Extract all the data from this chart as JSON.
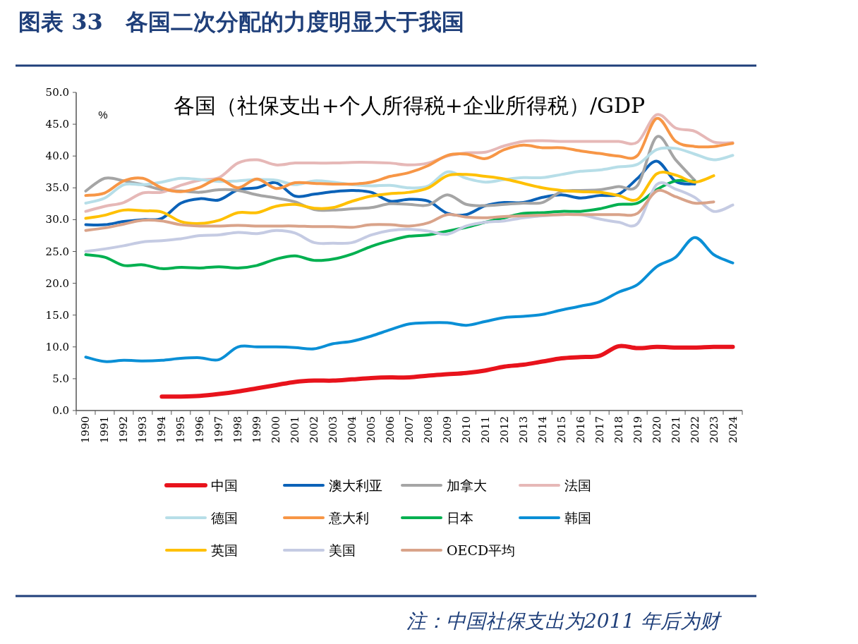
{
  "chart_data": {
    "type": "line",
    "title": "图表 33　各国二次分配的力度明显大于我国",
    "subtitle": "各国（社保支出+个人所得税+企业所得税）/GDP",
    "ylabel": "%",
    "categories": [
      "1990",
      "1991",
      "1992",
      "1993",
      "1994",
      "1995",
      "1996",
      "1997",
      "1998",
      "1999",
      "2000",
      "2001",
      "2002",
      "2003",
      "2004",
      "2005",
      "2006",
      "2007",
      "2008",
      "2009",
      "2010",
      "2011",
      "2012",
      "2013",
      "2014",
      "2015",
      "2016",
      "2017",
      "2018",
      "2019",
      "2020",
      "2021",
      "2022",
      "2023",
      "2024"
    ],
    "ylim": [
      0,
      50
    ],
    "yticks": [
      {
        "value": 0,
        "label": "0.0"
      },
      {
        "value": 5,
        "label": "5.0"
      },
      {
        "value": 10,
        "label": "10.0"
      },
      {
        "value": 15,
        "label": "15.0"
      },
      {
        "value": 20,
        "label": "20.0"
      },
      {
        "value": 25,
        "label": "25.0"
      },
      {
        "value": 30,
        "label": "30.0"
      },
      {
        "value": 35,
        "label": "35.0"
      },
      {
        "value": 40,
        "label": "40.0"
      },
      {
        "value": 45,
        "label": "45.0"
      },
      {
        "value": 50,
        "label": "50.0"
      }
    ],
    "grid": false,
    "legend": "bottom",
    "marker": "none",
    "line_style": "solid",
    "series": [
      {
        "name": "中国",
        "color": "#e8131c",
        "values": [
          null,
          null,
          null,
          null,
          2.2,
          2.2,
          2.3,
          2.6,
          3.0,
          3.5,
          4.0,
          4.5,
          4.7,
          4.7,
          4.9,
          5.1,
          5.2,
          5.2,
          5.5,
          5.7,
          5.9,
          6.3,
          6.9,
          7.2,
          7.7,
          8.2,
          8.4,
          8.6,
          10.1,
          9.8,
          10.0,
          9.9,
          9.9,
          10.0,
          10.0
        ]
      },
      {
        "name": "澳大利亚",
        "color": "#0b62b8",
        "values": [
          29.2,
          29.2,
          29.7,
          30.0,
          30.2,
          32.6,
          33.3,
          33.1,
          34.7,
          35.0,
          35.8,
          33.7,
          34.0,
          34.4,
          34.6,
          34.3,
          32.9,
          33.2,
          32.9,
          31.0,
          30.8,
          32.2,
          32.7,
          32.7,
          33.5,
          33.9,
          33.4,
          33.8,
          34.0,
          36.5,
          39.2,
          36.0,
          35.6,
          null,
          null
        ]
      },
      {
        "name": "加拿大",
        "color": "#a5a5a5",
        "values": [
          34.5,
          36.5,
          36.1,
          35.5,
          34.7,
          34.5,
          34.3,
          34.7,
          34.6,
          33.9,
          33.4,
          32.8,
          31.6,
          31.5,
          31.7,
          31.9,
          32.5,
          32.4,
          32.3,
          33.9,
          32.4,
          32.2,
          32.4,
          32.6,
          32.7,
          34.4,
          34.6,
          34.7,
          35.2,
          35.4,
          43.0,
          39.4,
          36.2,
          null,
          null
        ]
      },
      {
        "name": "法国",
        "color": "#e6b8b7",
        "values": [
          31.3,
          32.1,
          32.7,
          34.2,
          34.3,
          35.4,
          36.2,
          36.6,
          38.9,
          39.4,
          38.6,
          38.9,
          38.9,
          38.9,
          39.0,
          39.0,
          38.9,
          38.6,
          38.9,
          40.0,
          40.5,
          40.6,
          41.6,
          42.3,
          42.4,
          42.3,
          42.3,
          42.3,
          42.3,
          42.2,
          46.5,
          44.4,
          43.9,
          42.2,
          42.1
        ]
      },
      {
        "name": "德国",
        "color": "#b7dee8",
        "values": [
          32.6,
          33.4,
          35.5,
          35.5,
          35.9,
          36.5,
          36.3,
          36.0,
          36.1,
          36.3,
          36.2,
          35.5,
          36.1,
          35.9,
          35.5,
          35.3,
          35.4,
          35.0,
          35.3,
          37.5,
          36.5,
          35.9,
          36.3,
          36.6,
          36.6,
          37.1,
          37.6,
          37.8,
          38.3,
          38.7,
          41.0,
          41.2,
          40.3,
          39.4,
          40.1
        ]
      },
      {
        "name": "意大利",
        "color": "#f79646",
        "values": [
          33.8,
          34.2,
          36.1,
          36.5,
          35.0,
          34.4,
          35.1,
          36.4,
          35.0,
          36.4,
          34.9,
          35.8,
          35.7,
          35.6,
          35.6,
          35.9,
          36.8,
          37.4,
          38.5,
          40.1,
          40.3,
          39.6,
          41.0,
          41.7,
          41.3,
          41.3,
          40.8,
          40.4,
          40.0,
          40.1,
          45.9,
          42.3,
          41.5,
          41.5,
          42.0
        ]
      },
      {
        "name": "日本",
        "color": "#00b050",
        "values": [
          24.5,
          24.1,
          22.8,
          22.9,
          22.3,
          22.5,
          22.4,
          22.6,
          22.4,
          22.8,
          23.8,
          24.3,
          23.6,
          23.8,
          24.6,
          25.8,
          26.7,
          27.4,
          27.6,
          28.2,
          28.8,
          29.6,
          30.3,
          31.0,
          31.1,
          31.3,
          31.3,
          31.7,
          32.4,
          32.6,
          34.7,
          36.1,
          36.0,
          null,
          null
        ]
      },
      {
        "name": "韩国",
        "color": "#0a8fd6",
        "values": [
          8.4,
          7.7,
          7.9,
          7.8,
          7.9,
          8.2,
          8.3,
          8.0,
          10.0,
          10.0,
          10.0,
          9.9,
          9.7,
          10.5,
          10.9,
          11.7,
          12.7,
          13.6,
          13.8,
          13.8,
          13.4,
          14.0,
          14.6,
          14.8,
          15.1,
          15.8,
          16.4,
          17.1,
          18.6,
          19.8,
          22.6,
          24.1,
          27.2,
          24.5,
          23.2
        ]
      },
      {
        "name": "英国",
        "color": "#ffc000",
        "values": [
          30.2,
          30.7,
          31.5,
          31.4,
          31.2,
          29.7,
          29.4,
          29.9,
          31.1,
          31.1,
          32.1,
          32.4,
          31.8,
          31.9,
          32.9,
          33.7,
          34.1,
          34.3,
          35.0,
          36.9,
          37.1,
          36.8,
          36.4,
          35.7,
          35.0,
          34.6,
          34.4,
          34.3,
          33.8,
          33.2,
          37.2,
          37.0,
          35.9,
          36.9,
          null
        ]
      },
      {
        "name": "美国",
        "color": "#c5cbe3",
        "values": [
          25.0,
          25.4,
          25.9,
          26.5,
          26.7,
          27.0,
          27.5,
          27.6,
          28.0,
          27.8,
          28.3,
          27.9,
          26.4,
          26.3,
          26.4,
          27.6,
          28.3,
          28.5,
          28.2,
          27.7,
          29.0,
          29.6,
          29.8,
          30.3,
          30.6,
          30.8,
          30.8,
          30.1,
          29.6,
          29.4,
          35.5,
          34.8,
          33.5,
          31.3,
          32.3
        ]
      },
      {
        "name": "OECD平均",
        "color": "#d9a38a",
        "values": [
          28.3,
          28.7,
          29.3,
          29.9,
          29.8,
          29.2,
          29.0,
          29.0,
          29.1,
          29.0,
          29.0,
          29.0,
          28.9,
          28.9,
          28.8,
          29.2,
          29.2,
          29.0,
          29.5,
          30.8,
          30.4,
          30.3,
          30.5,
          30.6,
          30.7,
          30.8,
          30.8,
          30.8,
          30.8,
          31.0,
          34.5,
          33.6,
          32.6,
          32.8,
          null
        ]
      }
    ],
    "annotations": [
      "注：中国社保支出为2011 年后为财"
    ]
  }
}
